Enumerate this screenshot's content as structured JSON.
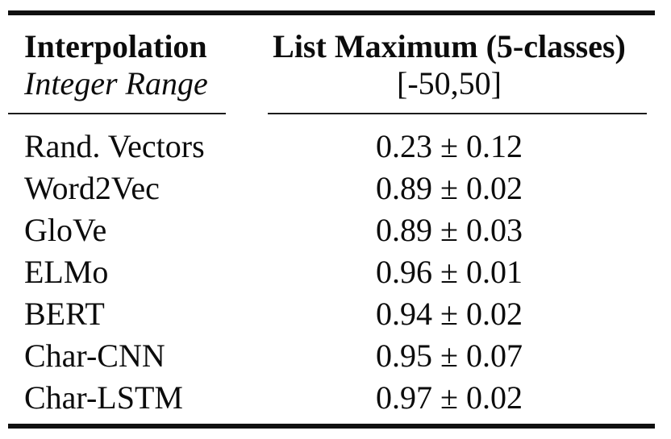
{
  "colors": {
    "background": "#ffffff",
    "text": "#0c0c0c",
    "rule_thick": "#101010",
    "rule_thin": "#1c1c1c"
  },
  "table": {
    "header": {
      "col1": {
        "line1": "Interpolation",
        "line2": "Integer Range"
      },
      "col2": {
        "line1": "List Maximum (5-classes)",
        "line2": "[-50,50]"
      }
    },
    "rows": [
      {
        "label": "Rand. Vectors",
        "value": "0.23 ± 0.12"
      },
      {
        "label": "Word2Vec",
        "value": "0.89 ± 0.02"
      },
      {
        "label": "GloVe",
        "value": "0.89 ± 0.03"
      },
      {
        "label": "ELMo",
        "value": "0.96 ± 0.01"
      },
      {
        "label": "BERT",
        "value": "0.94 ± 0.02"
      },
      {
        "label": "Char-CNN",
        "value": "0.95 ± 0.07"
      },
      {
        "label": "Char-LSTM",
        "value": "0.97 ± 0.02"
      }
    ]
  }
}
